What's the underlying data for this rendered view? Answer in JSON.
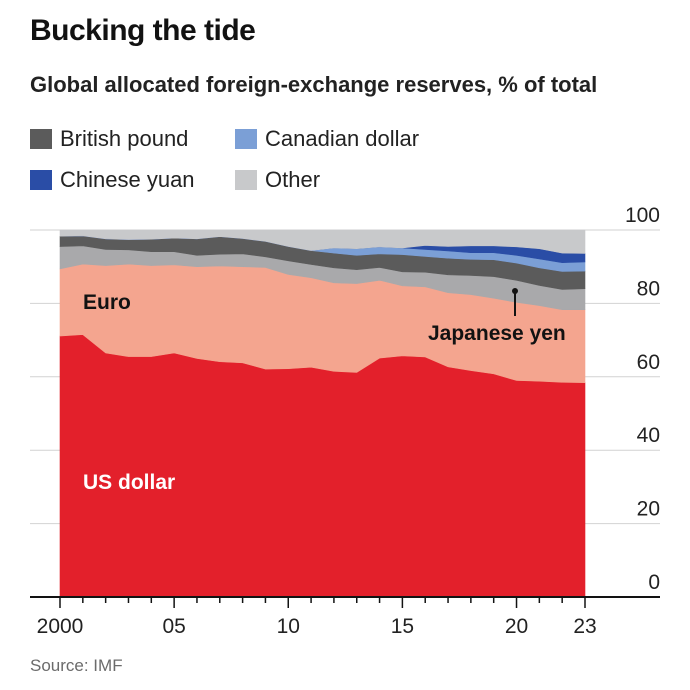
{
  "title": "Bucking the tide",
  "subtitle": "Global allocated foreign-exchange reserves, % of total",
  "source": "Source: IMF",
  "legend": [
    {
      "label": "British pound",
      "color": "#5b5b5b"
    },
    {
      "label": "Canadian dollar",
      "color": "#7b9fd6"
    },
    {
      "label": "Chinese yuan",
      "color": "#2a4da6"
    },
    {
      "label": "Other",
      "color": "#c8c9cb"
    }
  ],
  "labels": {
    "usd": "US dollar",
    "eur": "Euro",
    "jpy": "Japanese yen"
  },
  "chart_data": {
    "type": "area",
    "stacked": true,
    "x": [
      2000,
      2001,
      2002,
      2003,
      2004,
      2005,
      2006,
      2007,
      2008,
      2009,
      2010,
      2011,
      2012,
      2013,
      2014,
      2015,
      2016,
      2017,
      2018,
      2019,
      2020,
      2021,
      2022,
      2023
    ],
    "x_tick_labels": [
      {
        "x": 2000,
        "label": "2000"
      },
      {
        "x": 2005,
        "label": "05"
      },
      {
        "x": 2010,
        "label": "10"
      },
      {
        "x": 2015,
        "label": "15"
      },
      {
        "x": 2020,
        "label": "20"
      },
      {
        "x": 2023,
        "label": "23"
      }
    ],
    "y_ticks": [
      0,
      20,
      40,
      60,
      80,
      100
    ],
    "ylim": [
      0,
      100
    ],
    "series": [
      {
        "name": "US dollar",
        "color": "#e3202b",
        "values": [
          71.1,
          71.5,
          66.5,
          65.5,
          65.5,
          66.5,
          65.0,
          64.1,
          63.8,
          62.1,
          62.2,
          62.6,
          61.5,
          61.2,
          65.1,
          65.7,
          65.4,
          62.7,
          61.7,
          60.8,
          59.0,
          58.8,
          58.5,
          58.4
        ]
      },
      {
        "name": "Euro",
        "color": "#f4a58f",
        "values": [
          18.3,
          19.2,
          23.8,
          25.2,
          24.8,
          24.0,
          25.0,
          26.1,
          26.2,
          27.7,
          25.7,
          24.4,
          24.1,
          24.2,
          21.2,
          19.1,
          19.1,
          20.2,
          20.7,
          20.6,
          21.3,
          20.6,
          19.8,
          19.9
        ]
      },
      {
        "name": "Japanese yen",
        "color": "#a9a9ab",
        "values": [
          6.1,
          5.0,
          4.4,
          3.9,
          3.8,
          3.6,
          3.1,
          3.2,
          3.5,
          2.9,
          3.7,
          3.6,
          4.1,
          3.8,
          3.5,
          3.8,
          4.0,
          4.9,
          5.2,
          5.9,
          6.0,
          5.5,
          5.5,
          5.7
        ]
      },
      {
        "name": "British pound",
        "color": "#5b5b5b",
        "values": [
          2.8,
          2.7,
          2.9,
          2.8,
          3.4,
          3.7,
          4.5,
          4.8,
          4.2,
          4.2,
          3.9,
          3.8,
          4.0,
          3.9,
          3.7,
          4.7,
          4.3,
          4.5,
          4.4,
          4.6,
          4.7,
          4.8,
          4.9,
          4.8
        ]
      },
      {
        "name": "Canadian dollar",
        "color": "#7b9fd6",
        "values": [
          0,
          0,
          0,
          0,
          0,
          0,
          0,
          0,
          0,
          0,
          0,
          0,
          1.4,
          1.8,
          1.9,
          1.8,
          1.9,
          2.0,
          1.8,
          1.9,
          2.1,
          2.4,
          2.4,
          2.5
        ]
      },
      {
        "name": "Chinese yuan",
        "color": "#2a4da6",
        "values": [
          0,
          0,
          0,
          0,
          0,
          0,
          0,
          0,
          0,
          0,
          0,
          0,
          0,
          0,
          0,
          0,
          1.1,
          1.2,
          1.9,
          1.9,
          2.3,
          2.8,
          2.6,
          2.3
        ]
      },
      {
        "name": "Other",
        "color": "#c8c9cb",
        "values": [
          1.7,
          1.6,
          2.4,
          2.6,
          2.5,
          2.2,
          2.4,
          1.8,
          2.3,
          3.1,
          4.5,
          5.6,
          4.9,
          5.1,
          4.6,
          4.9,
          4.2,
          4.5,
          4.3,
          4.3,
          4.6,
          5.1,
          6.3,
          6.4
        ]
      }
    ],
    "annotations": [
      "Euro",
      "US dollar",
      "Japanese yen"
    ],
    "xlabel": "",
    "ylabel": ""
  }
}
